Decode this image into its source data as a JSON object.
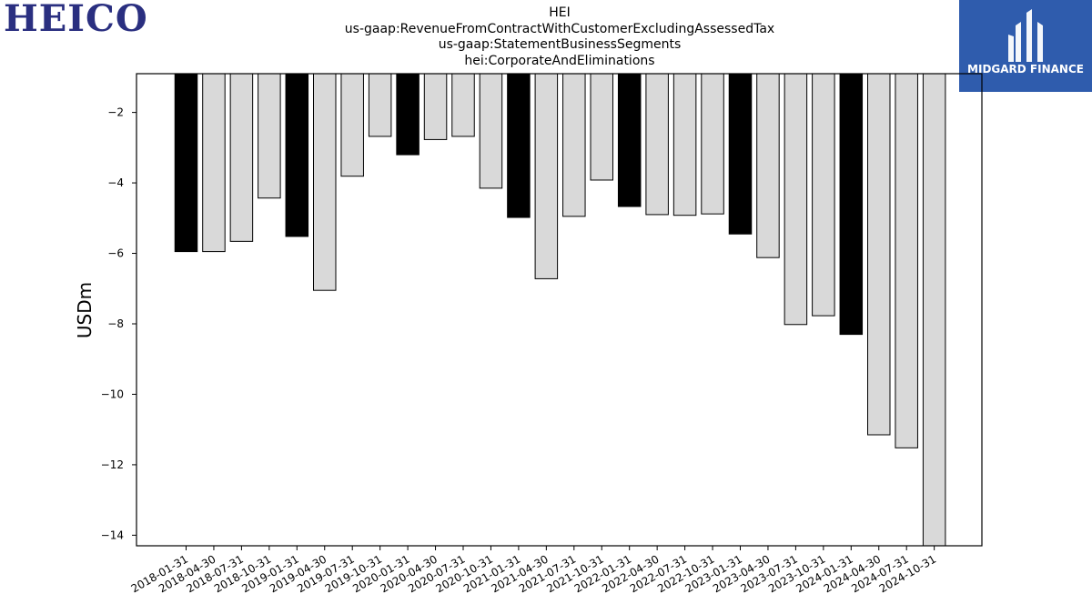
{
  "header": {
    "left_logo_text": "HEICO",
    "right_logo_text": "MIDGARD FINANCE"
  },
  "colors": {
    "highlight_bar": "#000000",
    "normal_bar": "#d9d9d9",
    "left_logo": "#2a2f80",
    "right_logo_bg": "#2f5cad"
  },
  "chart_data": {
    "type": "bar",
    "title_lines": [
      "HEI",
      "us-gaap:RevenueFromContractWithCustomerExcludingAssessedTax",
      "us-gaap:StatementBusinessSegments",
      "hei:CorporateAndEliminations"
    ],
    "xlabel": "",
    "ylabel": "USDm",
    "ylim": [
      -14.3,
      -0.9
    ],
    "yticks": [
      -2,
      -4,
      -6,
      -8,
      -10,
      -12,
      -14
    ],
    "grid": false,
    "categories": [
      "2018-01-31",
      "2018-04-30",
      "2018-07-31",
      "2018-10-31",
      "2019-01-31",
      "2019-04-30",
      "2019-07-31",
      "2019-10-31",
      "2020-01-31",
      "2020-04-30",
      "2020-07-31",
      "2020-10-31",
      "2021-01-31",
      "2021-04-30",
      "2021-07-31",
      "2021-10-31",
      "2022-01-31",
      "2022-04-30",
      "2022-07-31",
      "2022-10-31",
      "2023-01-31",
      "2023-04-30",
      "2023-07-31",
      "2023-10-31",
      "2024-01-31",
      "2024-04-30",
      "2024-07-31",
      "2024-10-31"
    ],
    "values": [
      -5.95,
      -5.95,
      -5.66,
      -4.43,
      -5.52,
      -7.05,
      -3.81,
      -2.68,
      -3.2,
      -2.77,
      -2.68,
      -4.15,
      -4.98,
      -6.72,
      -4.95,
      -3.92,
      -4.67,
      -4.9,
      -4.92,
      -4.88,
      -5.45,
      -6.12,
      -8.02,
      -7.77,
      -8.3,
      -11.15,
      -11.52,
      -14.3
    ],
    "highlighted": [
      true,
      false,
      false,
      false,
      true,
      false,
      false,
      false,
      true,
      false,
      false,
      false,
      true,
      false,
      false,
      false,
      true,
      false,
      false,
      false,
      true,
      false,
      false,
      false,
      true,
      false,
      false,
      false
    ]
  }
}
